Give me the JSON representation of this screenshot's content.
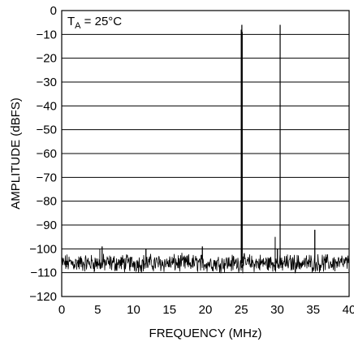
{
  "chart_data": {
    "type": "line",
    "title": "",
    "xlabel": "FREQUENCY (MHz)",
    "ylabel": "AMPLITUDE (dBFS)",
    "xlim": [
      0,
      40
    ],
    "ylim": [
      -120,
      0
    ],
    "x_ticks": [
      0,
      5,
      10,
      15,
      20,
      25,
      30,
      35,
      40
    ],
    "x_tick_labels": [
      "0",
      "5",
      "10",
      "15",
      "20",
      "25",
      "30",
      "35",
      "40"
    ],
    "y_ticks": [
      0,
      -10,
      -20,
      -30,
      -40,
      -50,
      -60,
      -70,
      -80,
      -90,
      -100,
      -110,
      -120
    ],
    "y_tick_labels": [
      "0",
      "−10",
      "−20",
      "−30",
      "−40",
      "−50",
      "−60",
      "−70",
      "−80",
      "−90",
      "−100",
      "−110",
      "−120"
    ],
    "grid": "horizontal",
    "annotation": {
      "prefix": "T",
      "subscript": "A",
      "suffix": " = 25°C"
    },
    "noise_floor": {
      "mean": -106,
      "range": [
        -112,
        -101
      ]
    },
    "series": [
      {
        "x": [
          0,
          5.3,
          5.6,
          11.7,
          19.6,
          25.0,
          25.07,
          25.12,
          29.7,
          30.0,
          30.4,
          30.6,
          35.2
        ],
        "y": [
          -99,
          -100,
          -99,
          -100,
          -99,
          -8,
          -6,
          -9,
          -95,
          -100,
          -6,
          -104,
          -92
        ]
      }
    ],
    "line_color": "#000000",
    "grid_color": "#000000"
  }
}
